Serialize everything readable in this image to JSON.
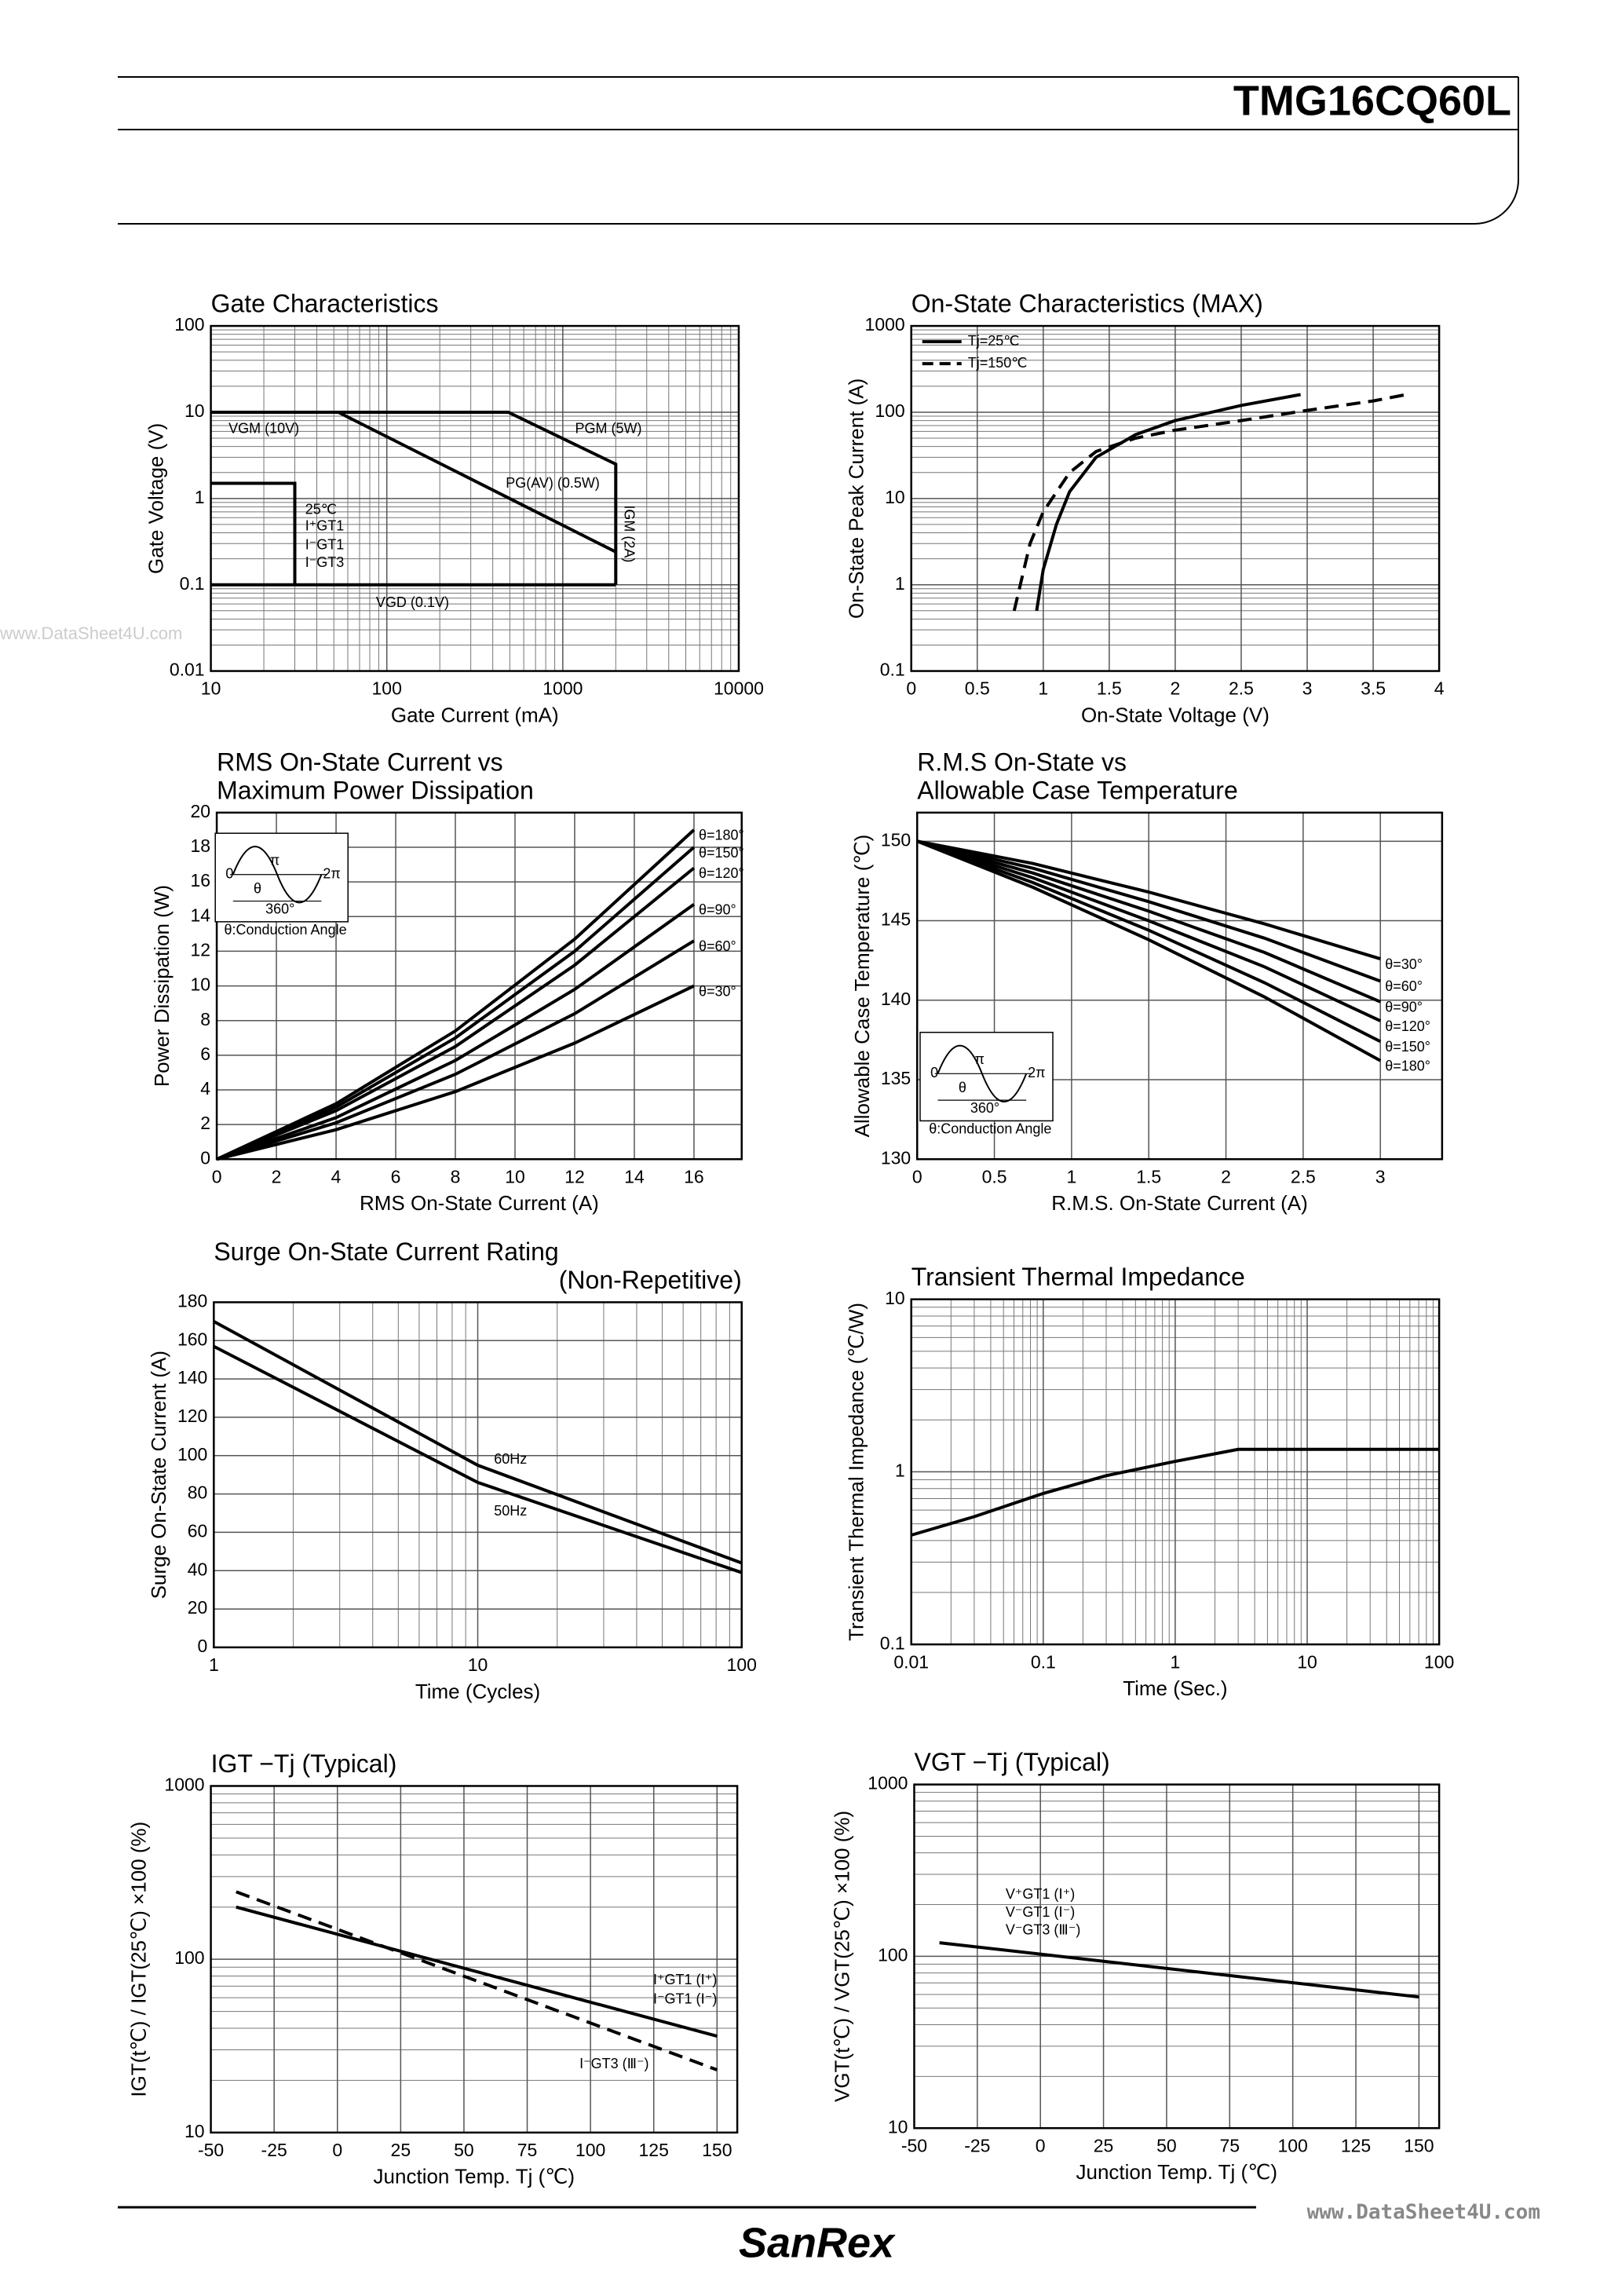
{
  "header": {
    "title": "TMG16CQ60L"
  },
  "footer": {
    "brand": "SanRex"
  },
  "watermarks": [
    "www.DataSheet4U.com",
    "www.DataSheet4U.com"
  ],
  "chart_data": [
    {
      "type": "line",
      "title": [
        "Gate Characteristics"
      ],
      "xlabel": "Gate Current (mA)",
      "ylabel": "Gate Voltage (V)",
      "xscale": "log",
      "yscale": "log",
      "xlim": [
        10,
        10000
      ],
      "ylim": [
        0.01,
        100
      ],
      "xticks": [
        10,
        100,
        1000,
        10000
      ],
      "yticks": [
        0.01,
        0.1,
        1,
        10,
        100
      ],
      "grid": true,
      "series": [
        {
          "color": "#000",
          "x": [
            10,
            490,
            2000,
            2000
          ],
          "values": [
            10,
            10,
            2.5,
            0.1
          ]
        },
        {
          "color": "#000",
          "x": [
            10,
            2000
          ],
          "values": [
            0.1,
            0.1
          ]
        },
        {
          "color": "#000",
          "x": [
            53,
            2000
          ],
          "values": [
            10,
            0.24
          ]
        },
        {
          "color": "#000",
          "x": [
            10,
            30,
            30
          ],
          "values": [
            1.5,
            1.5,
            0.1
          ]
        }
      ],
      "annotations": [
        "VGM (10V)",
        "PGM (5W)",
        "PG(AV) (0.5W)",
        "IGM (2A)",
        "VGD (0.1V)",
        "25℃",
        "I⁺GT1",
        "I⁻GT1",
        "I⁻GT3"
      ]
    },
    {
      "type": "line",
      "title": [
        "On-State Characteristics (MAX)"
      ],
      "xlabel": "On-State Voltage (V)",
      "ylabel": "On-State Peak Current (A)",
      "xscale": "linear",
      "yscale": "log",
      "xlim": [
        0,
        4
      ],
      "ylim": [
        0.1,
        1000
      ],
      "xticks": [
        0,
        0.5,
        1,
        1.5,
        2,
        2.5,
        3,
        3.5,
        4
      ],
      "yticks": [
        0.1,
        1,
        10,
        100,
        1000
      ],
      "grid": true,
      "legend": "upper left",
      "series": [
        {
          "name": "Tj=25℃",
          "color": "#000",
          "x": [
            0.95,
            1.0,
            1.1,
            1.2,
            1.4,
            1.7,
            2.0,
            2.5,
            2.95
          ],
          "values": [
            0.5,
            1.5,
            5,
            12,
            30,
            55,
            80,
            120,
            160
          ]
        },
        {
          "name": "Tj=150℃",
          "color": "#000",
          "dash": true,
          "x": [
            0.78,
            0.9,
            1.0,
            1.2,
            1.4,
            1.7,
            2.0,
            2.5,
            3.0,
            3.5,
            3.75
          ],
          "values": [
            0.5,
            3,
            7,
            20,
            35,
            50,
            62,
            80,
            105,
            135,
            160
          ]
        }
      ]
    },
    {
      "type": "line",
      "title": [
        "RMS On-State Current vs",
        "Maximum Power Dissipation"
      ],
      "xlabel": "RMS On-State Current (A)",
      "ylabel": "Power Dissipation (W)",
      "xscale": "linear",
      "yscale": "linear",
      "xlim": [
        0,
        17.6
      ],
      "ylim": [
        0,
        20
      ],
      "xticks": [
        0,
        2,
        4,
        6,
        8,
        10,
        12,
        14,
        16
      ],
      "yticks": [
        0,
        2,
        4,
        6,
        8,
        10,
        12,
        14,
        16,
        18,
        20
      ],
      "grid": true,
      "legend": "direct",
      "x": [
        0,
        4,
        8,
        12,
        16
      ],
      "series": [
        {
          "name": "θ=180°",
          "color": "#000",
          "values": [
            0,
            3.2,
            7.4,
            12.7,
            19
          ]
        },
        {
          "name": "θ=150°",
          "color": "#000",
          "values": [
            0,
            3.0,
            7.0,
            12.0,
            18
          ]
        },
        {
          "name": "θ=120°",
          "color": "#000",
          "values": [
            0,
            2.8,
            6.5,
            11.2,
            16.8
          ]
        },
        {
          "name": "θ=90°",
          "color": "#000",
          "values": [
            0,
            2.4,
            5.7,
            9.8,
            14.7
          ]
        },
        {
          "name": "θ=60°",
          "color": "#000",
          "values": [
            0,
            2.1,
            4.9,
            8.4,
            12.6
          ]
        },
        {
          "name": "θ=30°",
          "color": "#000",
          "values": [
            0,
            1.7,
            3.9,
            6.7,
            10
          ]
        }
      ],
      "inset_labels": [
        "0",
        "π",
        "2π",
        "θ",
        "360°",
        "θ:Conduction Angle"
      ]
    },
    {
      "type": "line",
      "title": [
        "R.M.S On-State vs",
        "Allowable Case Temperature"
      ],
      "xlabel": "R.M.S. On-State Current (A)",
      "ylabel": "Allowable Case Temperature (℃)",
      "xscale": "linear",
      "yscale": "linear",
      "xlim": [
        0,
        3.4
      ],
      "ylim": [
        130,
        151.8
      ],
      "xticks": [
        0,
        0.5,
        1,
        1.5,
        2,
        2.5,
        3
      ],
      "yticks": [
        130,
        135,
        140,
        145,
        150
      ],
      "grid": true,
      "legend": "direct",
      "x": [
        0,
        0.75,
        1.5,
        2.25,
        3
      ],
      "series": [
        {
          "name": "θ=30°",
          "color": "#000",
          "values": [
            150,
            148.6,
            146.8,
            144.8,
            142.6
          ]
        },
        {
          "name": "θ=60°",
          "color": "#000",
          "values": [
            150,
            148.3,
            146.2,
            143.9,
            141.2
          ]
        },
        {
          "name": "θ=90°",
          "color": "#000",
          "values": [
            150,
            148.0,
            145.6,
            143.0,
            139.9
          ]
        },
        {
          "name": "θ=120°",
          "color": "#000",
          "values": [
            150,
            147.7,
            145.0,
            142.1,
            138.7
          ]
        },
        {
          "name": "θ=150°",
          "color": "#000",
          "values": [
            150,
            147.4,
            144.4,
            141.1,
            137.4
          ]
        },
        {
          "name": "θ=180°",
          "color": "#000",
          "values": [
            150,
            147.1,
            143.8,
            140.2,
            136.2
          ]
        }
      ],
      "inset_labels": [
        "0",
        "π",
        "2π",
        "θ",
        "360°",
        "θ:Conduction Angle"
      ]
    },
    {
      "type": "line",
      "title": [
        "Surge On-State Current Rating",
        "(Non-Repetitive)"
      ],
      "xlabel": "Time (Cycles)",
      "ylabel": "Surge On-State Current (A)",
      "xscale": "log",
      "yscale": "linear",
      "xlim": [
        1,
        100
      ],
      "ylim": [
        0,
        180
      ],
      "xticks": [
        1,
        10,
        100
      ],
      "yticks": [
        0,
        20,
        40,
        60,
        80,
        100,
        120,
        140,
        160,
        180
      ],
      "grid": true,
      "series": [
        {
          "color": "#000",
          "x": [
            1,
            10,
            100
          ],
          "values": [
            170,
            95,
            44
          ]
        },
        {
          "color": "#000",
          "x": [
            1,
            10,
            100
          ],
          "values": [
            157,
            86,
            39
          ]
        }
      ],
      "annotations": [
        "60Hz",
        "50Hz"
      ]
    },
    {
      "type": "line",
      "title": [
        "Transient Thermal Impedance"
      ],
      "xlabel": "Time (Sec.)",
      "ylabel": "Transient Thermal Impedance (℃/W)",
      "xscale": "log",
      "yscale": "log",
      "xlim": [
        0.01,
        100
      ],
      "ylim": [
        0.1,
        10
      ],
      "xticks": [
        0.01,
        0.1,
        1,
        10,
        100
      ],
      "yticks": [
        0.1,
        1,
        10
      ],
      "grid": true,
      "series": [
        {
          "color": "#000",
          "x": [
            0.01,
            0.03,
            0.1,
            0.3,
            1,
            3,
            10,
            100
          ],
          "values": [
            0.43,
            0.55,
            0.75,
            0.95,
            1.15,
            1.35,
            1.35,
            1.35
          ]
        }
      ]
    },
    {
      "type": "line",
      "title": [
        "IGT −Tj (Typical)"
      ],
      "xlabel": "Junction Temp. Tj (℃)",
      "ylabel": "IGT(t℃) / IGT(25℃) ×100 (%)",
      "xscale": "linear",
      "yscale": "log",
      "xlim": [
        -50,
        158
      ],
      "ylim": [
        10,
        1000
      ],
      "xticks": [
        -50,
        -25,
        0,
        25,
        50,
        75,
        100,
        125,
        150
      ],
      "yticks": [
        10,
        100,
        1000
      ],
      "grid": true,
      "series": [
        {
          "color": "#000",
          "x": [
            -40,
            150
          ],
          "values": [
            200,
            36
          ]
        },
        {
          "color": "#000",
          "dash": true,
          "x": [
            -40,
            150
          ],
          "values": [
            245,
            23
          ]
        }
      ],
      "annotations": [
        "I⁺GT1 (Ⅰ⁺)",
        "I⁻GT1 (Ⅰ⁻)",
        "I⁻GT3 (Ⅲ⁻)"
      ]
    },
    {
      "type": "line",
      "title": [
        "VGT −Tj (Typical)"
      ],
      "xlabel": "Junction Temp. Tj (℃)",
      "ylabel": "VGT(t℃) / VGT(25℃) ×100 (%)",
      "xscale": "linear",
      "yscale": "log",
      "xlim": [
        -50,
        158
      ],
      "ylim": [
        10,
        1000
      ],
      "xticks": [
        -50,
        -25,
        0,
        25,
        50,
        75,
        100,
        125,
        150
      ],
      "yticks": [
        10,
        100,
        1000
      ],
      "grid": true,
      "series": [
        {
          "color": "#000",
          "x": [
            -40,
            150
          ],
          "values": [
            120,
            58
          ]
        }
      ],
      "annotations": [
        "V⁺GT1 (Ⅰ⁺)",
        "V⁻GT1 (Ⅰ⁻)",
        "V⁻GT3 (Ⅲ⁻)"
      ]
    }
  ]
}
